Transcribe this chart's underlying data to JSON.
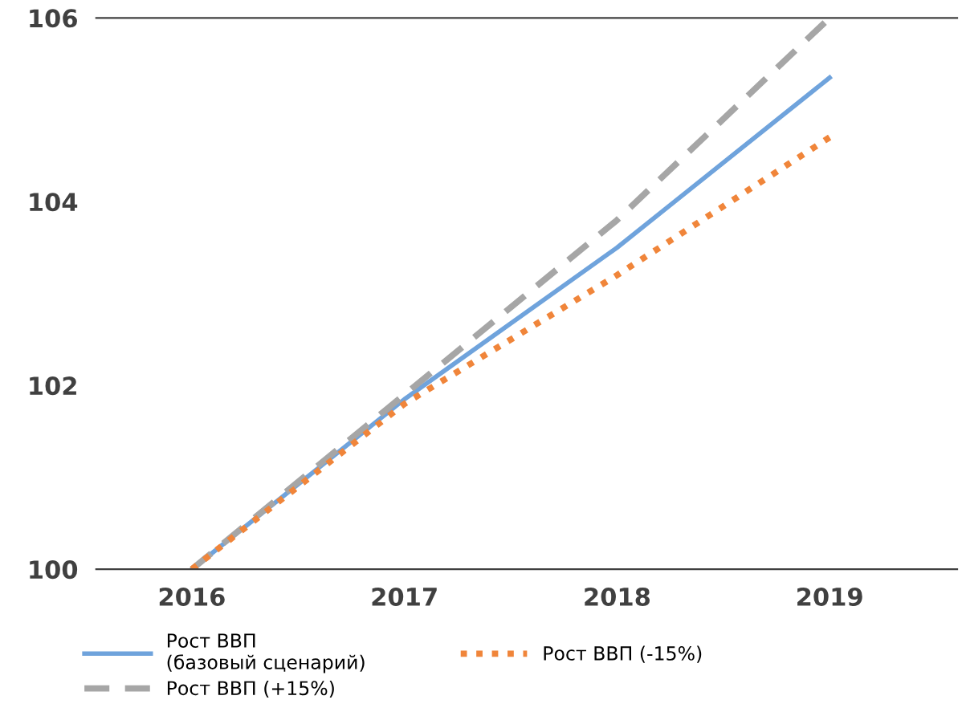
{
  "chart_data": {
    "type": "line",
    "x": [
      2016,
      2017,
      2018,
      2019
    ],
    "series": [
      {
        "name": "Рост ВВП\n(базовый сценарий)",
        "color": "#6fa3dc",
        "values": [
          100,
          101.85,
          103.5,
          105.35
        ],
        "line_style": "solid"
      },
      {
        "name": "Рост ВВП (+15%)",
        "color": "#a6a6a6",
        "values": [
          100,
          101.9,
          103.8,
          106.0
        ],
        "line_style": "dashed"
      },
      {
        "name": "Рост ВВП (-15%)",
        "color": "#f0853a",
        "values": [
          100,
          101.8,
          103.2,
          104.7
        ],
        "line_style": "dotted"
      }
    ],
    "xlim": [
      2015.55,
      2019.6
    ],
    "xticks": [
      2016,
      2017,
      2018,
      2019
    ],
    "ylim": [
      100,
      106
    ],
    "yticks": [
      100,
      102,
      104,
      106
    ],
    "grid": false,
    "legend": "bottom",
    "marker": "none"
  }
}
